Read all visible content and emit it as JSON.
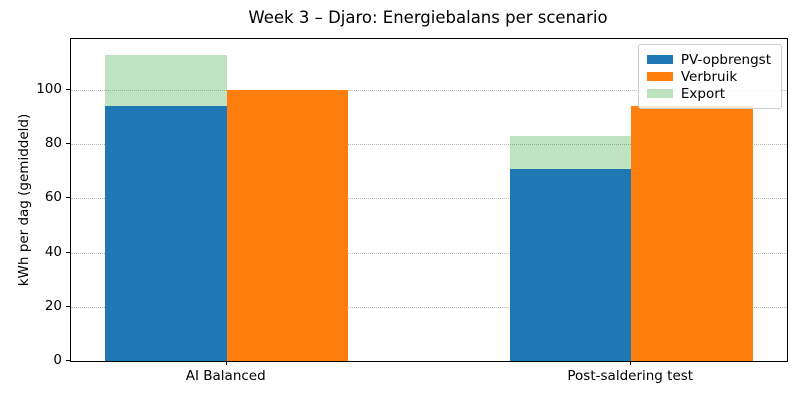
{
  "chart_data": {
    "type": "bar",
    "title": "Week 3 – Djaro: Energiebalans per scenario",
    "xlabel": "",
    "ylabel": "kWh per dag (gemiddeld)",
    "categories": [
      "AI Balanced",
      "Post-saldering test"
    ],
    "series": [
      {
        "name": "PV-opbrengst",
        "color": "#1f77b4",
        "values": [
          94,
          71
        ],
        "style": "grouped",
        "group_offset": -0.15
      },
      {
        "name": "Verbruik",
        "color": "#ff7f0e",
        "values": [
          100,
          94
        ],
        "style": "grouped",
        "group_offset": 0.15
      },
      {
        "name": "Export",
        "color": "rgba(44,160,44,0.3)",
        "values": [
          19,
          12
        ],
        "style": "stacked_on_pv",
        "stacked_on": "PV-opbrengst",
        "visible_tops": [
          113,
          83
        ]
      }
    ],
    "yticks": [
      0,
      20,
      40,
      60,
      80,
      100
    ],
    "ylim": [
      0,
      118.8
    ],
    "xlim": [
      -0.385,
      1.385
    ],
    "bar_width_units": 0.3,
    "grid": "horizontal-dotted",
    "grid_color": "#b8b8b8",
    "legend_position": "upper right",
    "spine_color": "#000000",
    "background_color": "#ffffff"
  }
}
